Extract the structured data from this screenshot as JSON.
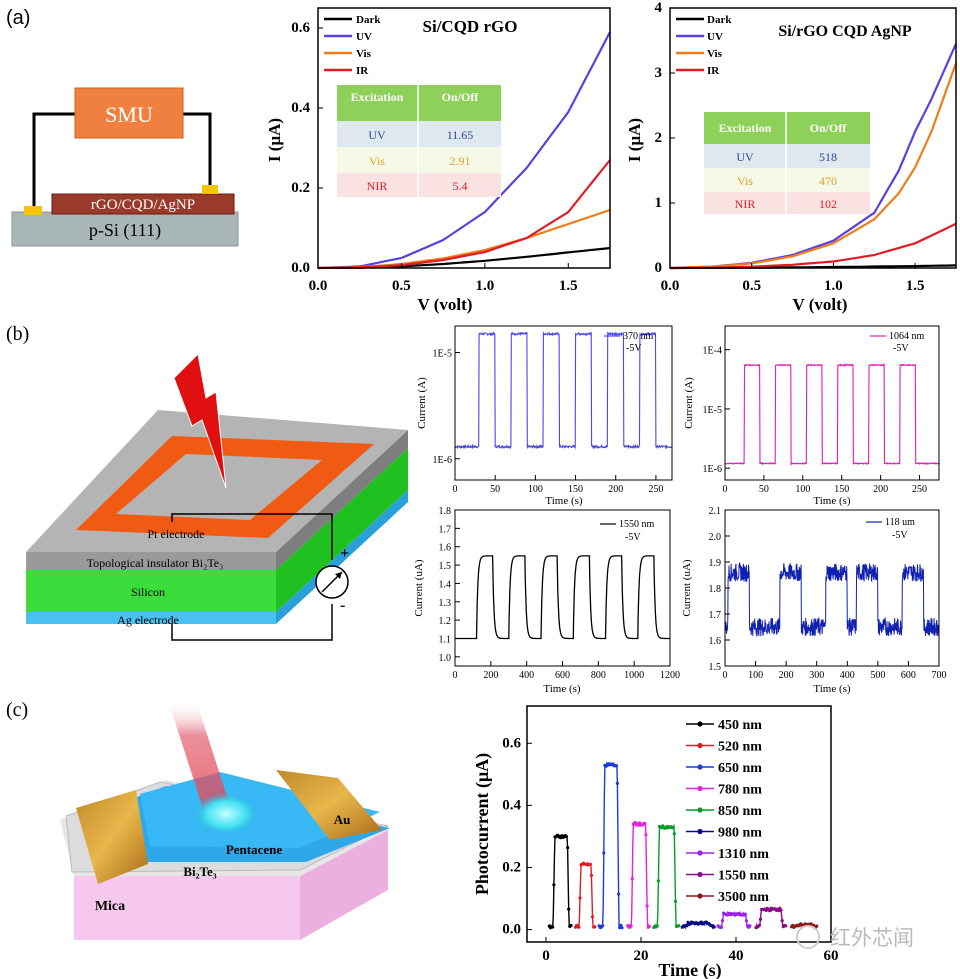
{
  "panels": {
    "a": {
      "label": "(a)"
    },
    "b": {
      "label": "(b)"
    },
    "c": {
      "label": "(c)"
    }
  },
  "schematic_a": {
    "smu": "SMU",
    "film": "rGO/CQD/AgNP",
    "substrate": "p-Si (111)"
  },
  "schematic_b": {
    "pt": "Pt electrode",
    "ti": "Topological insulator Bi₂Te₃",
    "silicon": "Silicon",
    "ag": "Ag electrode",
    "plus": "+",
    "minus": "-"
  },
  "schematic_c": {
    "pentacene": "Pentacene",
    "au": "Au",
    "bi2te3": "Bi₂Te₃",
    "mica": "Mica"
  },
  "watermark": {
    "text": "红外芯闻"
  },
  "chart_data": [
    {
      "id": "a1",
      "type": "line",
      "title": "Si/CQD rGO",
      "xlabel": "V (volt)",
      "ylabel": "I (μA)",
      "xlim": [
        0,
        1.75
      ],
      "ylim": [
        0,
        0.65
      ],
      "xticks": [
        "0.0",
        "0.5",
        "1.0",
        "1.5"
      ],
      "xtick_values": [
        0,
        0.5,
        1.0,
        1.5
      ],
      "yticks": [
        "0.0",
        "0.2",
        "0.4",
        "0.6"
      ],
      "ytick_values": [
        0,
        0.2,
        0.4,
        0.6
      ],
      "legend": [
        "Dark",
        "UV",
        "Vis",
        "IR"
      ],
      "series": [
        {
          "name": "Dark",
          "color": "#000000",
          "x": [
            0,
            0.25,
            0.5,
            0.75,
            1.0,
            1.25,
            1.5,
            1.75
          ],
          "y": [
            0,
            0.001,
            0.004,
            0.01,
            0.018,
            0.028,
            0.039,
            0.05
          ]
        },
        {
          "name": "UV",
          "color": "#5b3fe0",
          "x": [
            0,
            0.25,
            0.5,
            0.75,
            1.0,
            1.25,
            1.5,
            1.75
          ],
          "y": [
            0,
            0.004,
            0.025,
            0.07,
            0.14,
            0.25,
            0.39,
            0.59
          ]
        },
        {
          "name": "Vis",
          "color": "#f07c1a",
          "x": [
            0,
            0.25,
            0.5,
            0.75,
            1.0,
            1.25,
            1.5,
            1.75
          ],
          "y": [
            0,
            0.002,
            0.01,
            0.024,
            0.045,
            0.075,
            0.11,
            0.145
          ]
        },
        {
          "name": "IR",
          "color": "#e01b24",
          "x": [
            0,
            0.25,
            0.5,
            0.75,
            1.0,
            1.25,
            1.5,
            1.75
          ],
          "y": [
            0,
            0.001,
            0.007,
            0.02,
            0.04,
            0.075,
            0.14,
            0.27
          ]
        }
      ],
      "table": {
        "headers": [
          "Excitation",
          "On/Off"
        ],
        "rows": [
          [
            "UV",
            "11.65"
          ],
          [
            "Vis",
            "2.91"
          ],
          [
            "NIR",
            "5.4"
          ]
        ]
      }
    },
    {
      "id": "a2",
      "type": "line",
      "title": "Si/rGO CQD AgNP",
      "xlabel": "V (volt)",
      "ylabel": "I (μA)",
      "xlim": [
        0,
        1.75
      ],
      "ylim": [
        0,
        4
      ],
      "xticks": [
        "0.0",
        "0.5",
        "1.0",
        "1.5"
      ],
      "xtick_values": [
        0,
        0.5,
        1.0,
        1.5
      ],
      "yticks": [
        "0",
        "1",
        "2",
        "3",
        "4"
      ],
      "ytick_values": [
        0,
        1,
        2,
        3,
        4
      ],
      "legend": [
        "Dark",
        "UV",
        "Vis",
        "IR"
      ],
      "series": [
        {
          "name": "Dark",
          "color": "#000000",
          "x": [
            0,
            0.5,
            1.0,
            1.5,
            1.75
          ],
          "y": [
            0,
            0.005,
            0.015,
            0.03,
            0.04
          ]
        },
        {
          "name": "UV",
          "color": "#5b3fe0",
          "x": [
            0,
            0.25,
            0.5,
            0.75,
            1.0,
            1.25,
            1.4,
            1.5,
            1.6,
            1.75
          ],
          "y": [
            0,
            0.02,
            0.08,
            0.2,
            0.42,
            0.85,
            1.5,
            2.1,
            2.6,
            3.45
          ]
        },
        {
          "name": "Vis",
          "color": "#f07c1a",
          "x": [
            0,
            0.25,
            0.5,
            0.75,
            1.0,
            1.25,
            1.4,
            1.5,
            1.6,
            1.75
          ],
          "y": [
            0,
            0.02,
            0.07,
            0.18,
            0.38,
            0.75,
            1.15,
            1.55,
            2.1,
            3.15
          ]
        },
        {
          "name": "IR",
          "color": "#e01b24",
          "x": [
            0,
            0.25,
            0.5,
            0.75,
            1.0,
            1.25,
            1.5,
            1.75
          ],
          "y": [
            0,
            0.005,
            0.02,
            0.05,
            0.1,
            0.2,
            0.38,
            0.68
          ]
        }
      ],
      "table": {
        "headers": [
          "Excitation",
          "On/Off"
        ],
        "rows": [
          [
            "UV",
            "518"
          ],
          [
            "Vis",
            "470"
          ],
          [
            "NIR",
            "102"
          ]
        ]
      }
    },
    {
      "id": "b1",
      "type": "line",
      "title": "",
      "xlabel": "Time (s)",
      "ylabel": "Current (A)",
      "scale": "log",
      "xlim": [
        0,
        270
      ],
      "ylim_log": [
        -6.2,
        -4.75
      ],
      "xticks": [
        "0",
        "50",
        "100",
        "150",
        "200",
        "250"
      ],
      "xtick_values": [
        0,
        50,
        100,
        150,
        200,
        250
      ],
      "yticks": [
        "1E-6",
        "1E-5"
      ],
      "ytick_values": [
        -6,
        -5
      ],
      "legend": [
        "370 nm",
        "-5V"
      ],
      "series": [
        {
          "name": "370 nm",
          "color": "#4a4ae0",
          "low": 1.3e-06,
          "high": 1.5e-05,
          "on_times": [
            30,
            70,
            110,
            150,
            190,
            230
          ],
          "on_duration": 20
        }
      ]
    },
    {
      "id": "b2",
      "type": "line",
      "title": "",
      "xlabel": "Time (s)",
      "ylabel": "Current (A)",
      "scale": "log",
      "xlim": [
        0,
        275
      ],
      "ylim_log": [
        -6.2,
        -3.6
      ],
      "xticks": [
        "0",
        "50",
        "100",
        "150",
        "200",
        "250"
      ],
      "xtick_values": [
        0,
        50,
        100,
        150,
        200,
        250
      ],
      "yticks": [
        "1E-6",
        "1E-5",
        "1E-4"
      ],
      "ytick_values": [
        -6,
        -5,
        -4
      ],
      "legend": [
        "1064 nm",
        "-5V"
      ],
      "series": [
        {
          "name": "1064 nm",
          "color": "#e020b0",
          "low": 1.2e-06,
          "high": 5.5e-05,
          "on_times": [
            25,
            65,
            105,
            145,
            185,
            225
          ],
          "on_duration": 20
        }
      ]
    },
    {
      "id": "b3",
      "type": "line",
      "title": "",
      "xlabel": "Time (s)",
      "ylabel": "Current (uA)",
      "xlim": [
        0,
        1200
      ],
      "ylim": [
        0.95,
        1.8
      ],
      "xticks": [
        "0",
        "200",
        "400",
        "600",
        "800",
        "1000",
        "1200"
      ],
      "xtick_values": [
        0,
        200,
        400,
        600,
        800,
        1000,
        1200
      ],
      "yticks": [
        "1.0",
        "1.1",
        "1.2",
        "1.3",
        "1.4",
        "1.5",
        "1.6",
        "1.7",
        "1.8"
      ],
      "ytick_values": [
        1.0,
        1.1,
        1.2,
        1.3,
        1.4,
        1.5,
        1.6,
        1.7,
        1.8
      ],
      "legend": [
        "1550 nm",
        "-5V"
      ],
      "series": [
        {
          "name": "1550 nm",
          "color": "#000000",
          "low": 1.1,
          "high": 1.55,
          "on_times": [
            120,
            300,
            480,
            660,
            840,
            1020
          ],
          "on_duration": 90
        }
      ]
    },
    {
      "id": "b4",
      "type": "line",
      "title": "",
      "xlabel": "Time (s)",
      "ylabel": "Current (uA)",
      "xlim": [
        0,
        700
      ],
      "ylim": [
        1.5,
        2.1
      ],
      "xticks": [
        "0",
        "100",
        "200",
        "300",
        "400",
        "500",
        "600",
        "700"
      ],
      "xtick_values": [
        0,
        100,
        200,
        300,
        400,
        500,
        600,
        700
      ],
      "yticks": [
        "1.5",
        "1.6",
        "1.7",
        "1.8",
        "1.9",
        "2.0",
        "2.1"
      ],
      "ytick_values": [
        1.5,
        1.6,
        1.7,
        1.8,
        1.9,
        2.0,
        2.1
      ],
      "legend": [
        "118 um",
        "-5V"
      ],
      "series": [
        {
          "name": "118 um",
          "color": "#1020b0",
          "low": 1.65,
          "high": 1.86,
          "on_times": [
            10,
            180,
            330,
            430,
            580
          ],
          "on_duration": 70
        }
      ]
    },
    {
      "id": "c1",
      "type": "line",
      "title": "",
      "xlabel": "Time (s)",
      "ylabel": "Photocurrent (μA)",
      "xlim": [
        -4,
        60
      ],
      "ylim": [
        -0.04,
        0.72
      ],
      "xticks": [
        "0",
        "20",
        "40",
        "60"
      ],
      "xtick_values": [
        0,
        20,
        40,
        60
      ],
      "yticks": [
        "0.0",
        "0.2",
        "0.4",
        "0.6"
      ],
      "ytick_values": [
        0,
        0.2,
        0.4,
        0.6
      ],
      "legend": [
        "450 nm",
        "520 nm",
        "650 nm",
        "780 nm",
        "850 nm",
        "980 nm",
        "1310 nm",
        "1550 nm",
        "3500 nm"
      ],
      "series": [
        {
          "name": "450 nm",
          "color": "#000000",
          "start": 1.5,
          "end": 4.5,
          "peak": 0.3
        },
        {
          "name": "520 nm",
          "color": "#e01b24",
          "start": 7.0,
          "end": 9.5,
          "peak": 0.21
        },
        {
          "name": "650 nm",
          "color": "#1a3ae0",
          "start": 12.0,
          "end": 15.0,
          "peak": 0.53
        },
        {
          "name": "780 nm",
          "color": "#e024e0",
          "start": 18.0,
          "end": 21.0,
          "peak": 0.34
        },
        {
          "name": "850 nm",
          "color": "#0a9a2a",
          "start": 23.5,
          "end": 27.0,
          "peak": 0.33
        },
        {
          "name": "980 nm",
          "color": "#0a0a8a",
          "start": 29.5,
          "end": 34.5,
          "peak": 0.02
        },
        {
          "name": "1310 nm",
          "color": "#a020f0",
          "start": 37.0,
          "end": 42.0,
          "peak": 0.05
        },
        {
          "name": "1550 nm",
          "color": "#8a0a8a",
          "start": 45.0,
          "end": 49.5,
          "peak": 0.065
        },
        {
          "name": "3500 nm",
          "color": "#8a1a1a",
          "start": 52.5,
          "end": 56.0,
          "peak": 0.015
        }
      ]
    }
  ]
}
